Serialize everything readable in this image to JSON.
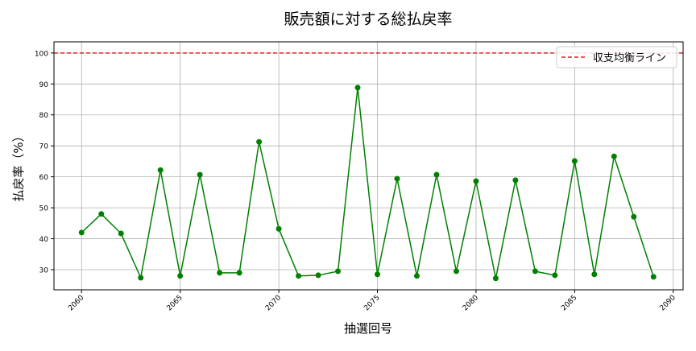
{
  "chart_data": {
    "type": "line",
    "title": "販売額に対する総払戻率",
    "xlabel": "抽選回号",
    "ylabel": "払戻率（%）",
    "xlim": [
      2058.6,
      2090.5
    ],
    "ylim": [
      23.5,
      103.6
    ],
    "xticks": [
      2060,
      2065,
      2070,
      2075,
      2080,
      2085,
      2090
    ],
    "yticks": [
      30,
      40,
      50,
      60,
      70,
      80,
      90,
      100
    ],
    "grid": true,
    "legend_position": "top-right",
    "x": [
      2060,
      2061,
      2062,
      2063,
      2064,
      2065,
      2066,
      2067,
      2068,
      2069,
      2070,
      2071,
      2072,
      2073,
      2074,
      2075,
      2076,
      2077,
      2078,
      2079,
      2080,
      2081,
      2082,
      2083,
      2084,
      2085,
      2086,
      2087,
      2088,
      2089
    ],
    "series": [
      {
        "values": [
          42.0,
          48.0,
          41.7,
          27.4,
          62.2,
          28.0,
          60.7,
          29.0,
          29.0,
          71.3,
          43.2,
          28.0,
          28.2,
          29.5,
          88.8,
          28.5,
          59.4,
          28.0,
          60.7,
          29.5,
          58.6,
          27.2,
          58.9,
          29.5,
          28.2,
          65.1,
          28.5,
          66.6,
          47.1,
          27.7
        ],
        "color": "#008000",
        "marker": "circle"
      }
    ],
    "reference_line": {
      "name": "収支均衡ライン",
      "y": 100,
      "color": "#e02020",
      "style": "dashed"
    }
  }
}
